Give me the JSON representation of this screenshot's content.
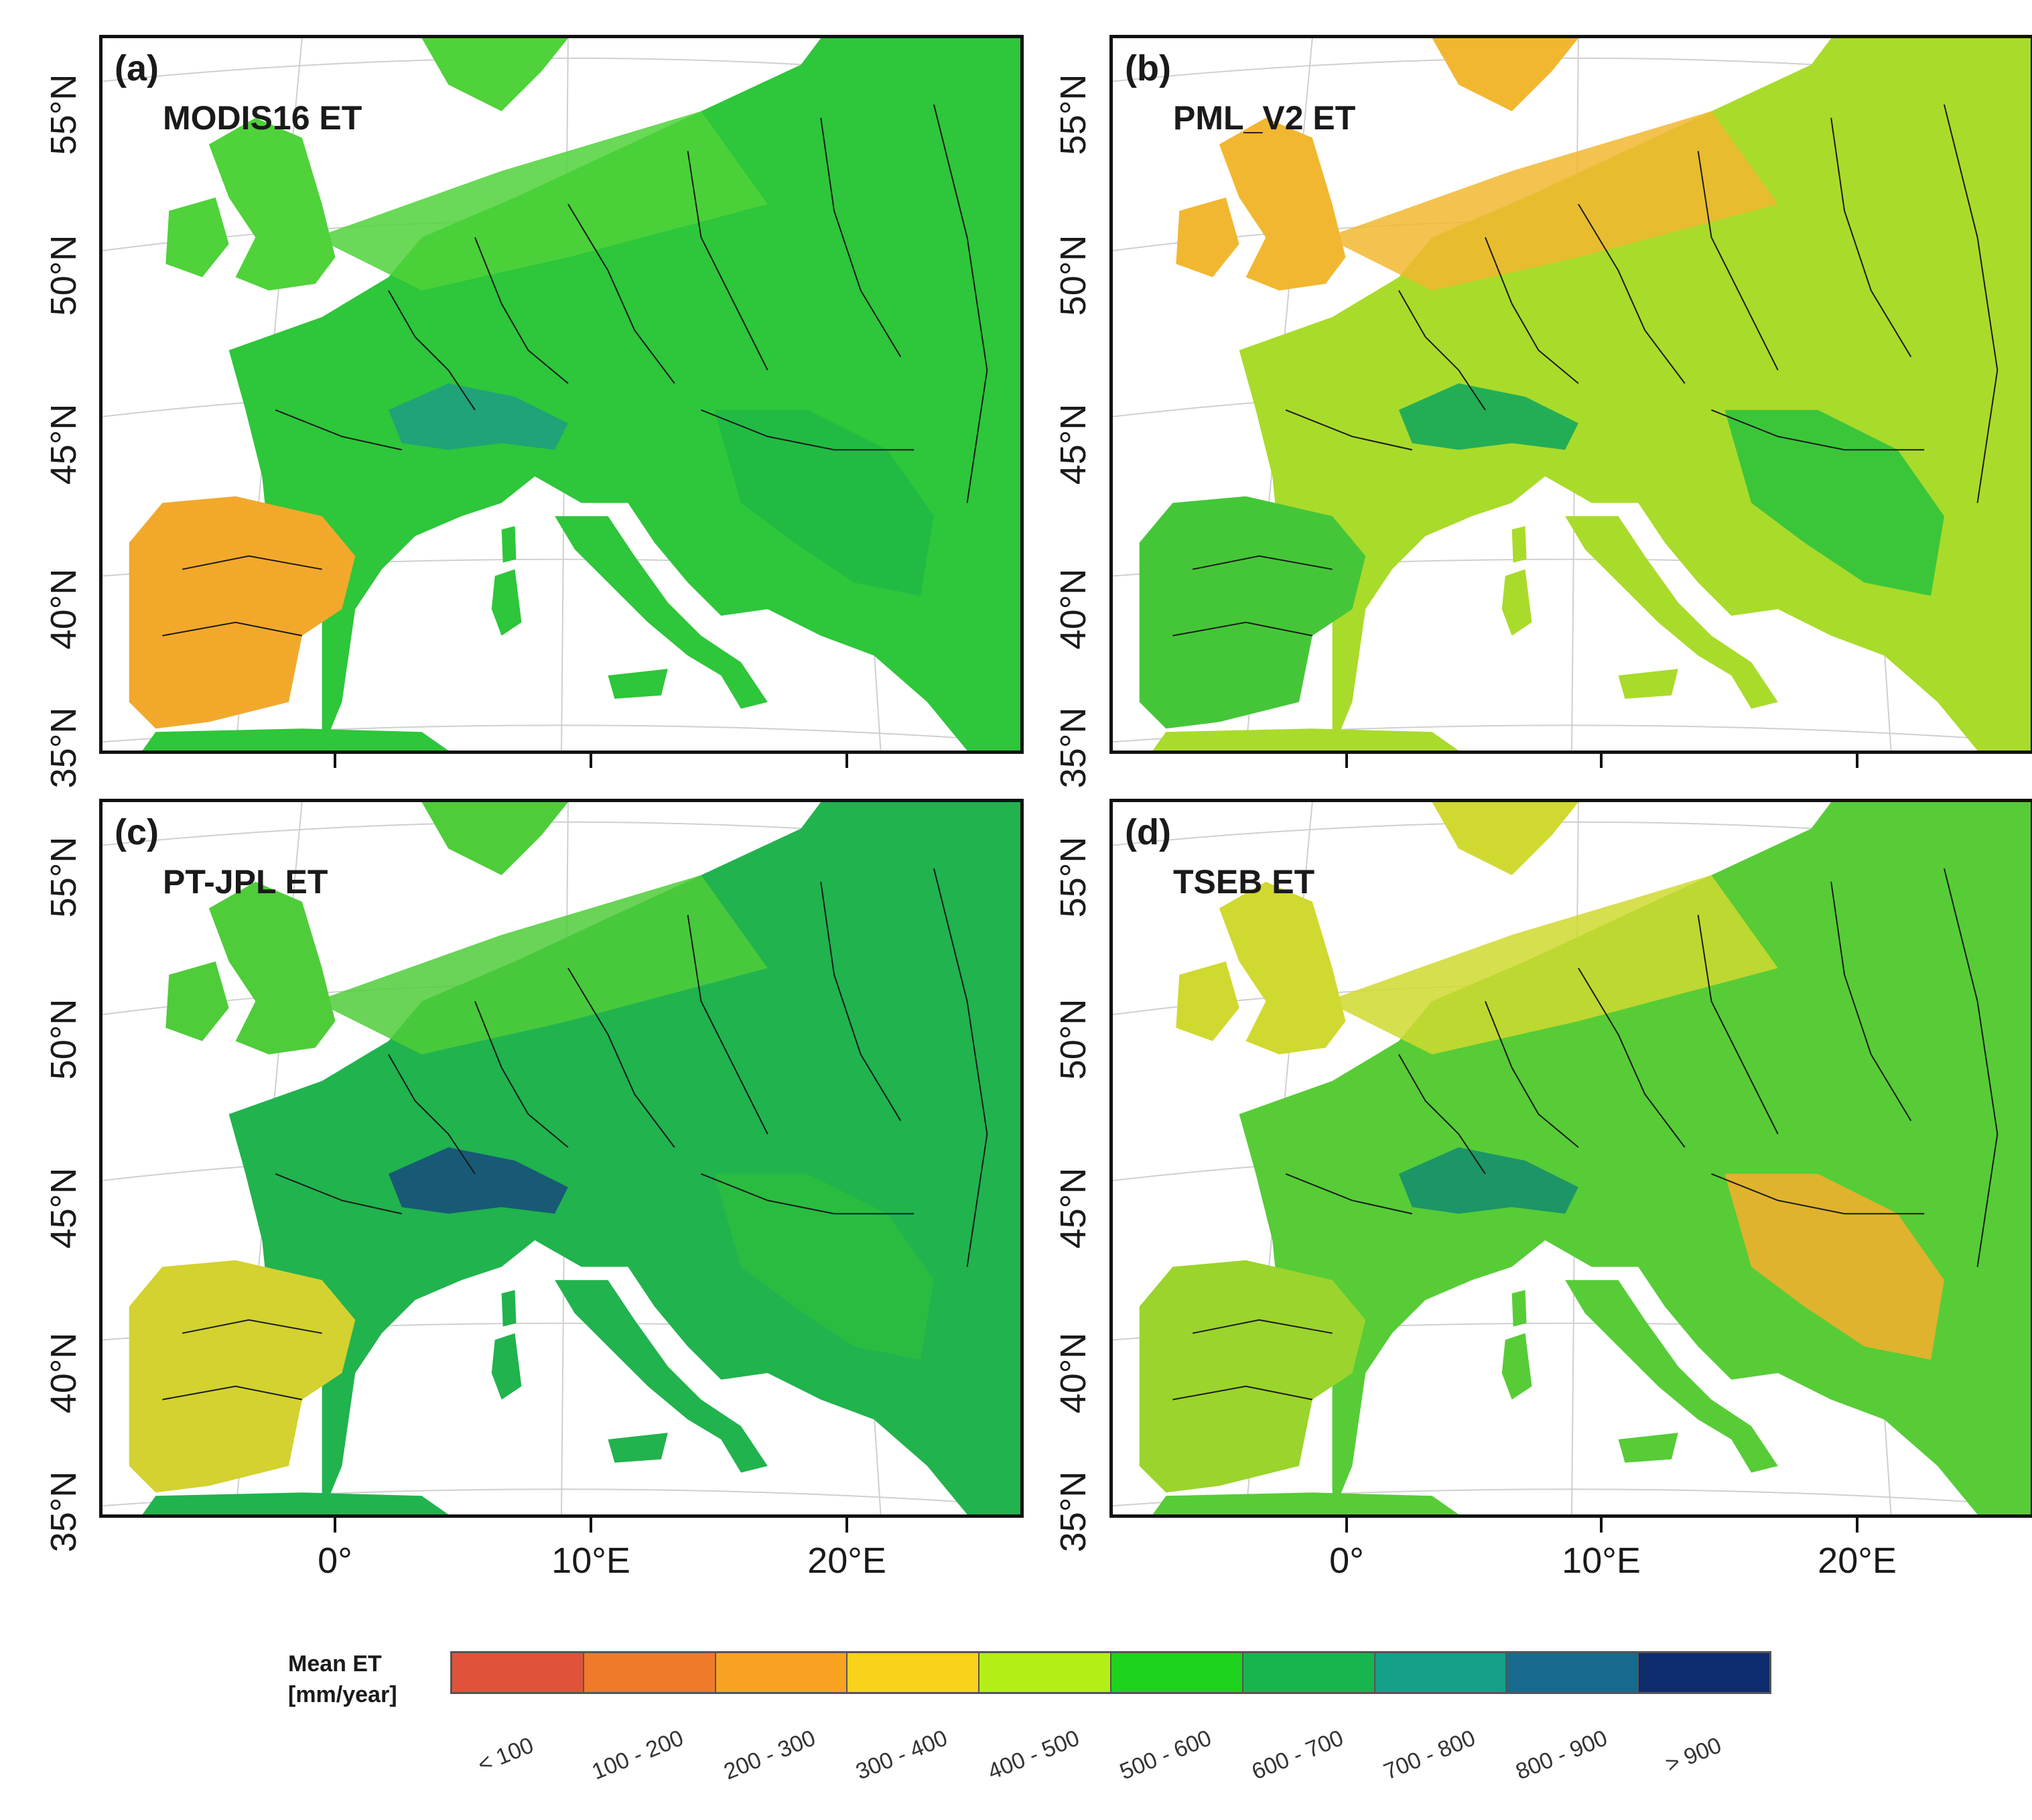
{
  "panels": [
    {
      "tag": "(a)",
      "title": "MODIS16 ET",
      "dominant": "#2ec63a",
      "iberia": "#f2a92b",
      "alps": "#1f9e7f",
      "north": "#4fd23a",
      "east": "#20b946"
    },
    {
      "tag": "(b)",
      "title": "PML_V2 ET",
      "dominant": "#a9db2b",
      "iberia": "#45c638",
      "alps": "#14a85a",
      "north": "#f2b730",
      "east": "#2fc33c"
    },
    {
      "tag": "(c)",
      "title": "PT-JPL ET",
      "dominant": "#21b34e",
      "iberia": "#d3d230",
      "alps": "#17507a",
      "north": "#4fcc3a",
      "east": "#2bbd3f"
    },
    {
      "tag": "(d)",
      "title": "TSEB ET",
      "dominant": "#57cc37",
      "iberia": "#9bd42c",
      "alps": "#168f6d",
      "north": "#cfd92f",
      "east": "#eeb02c"
    }
  ],
  "lat_labels": [
    "55°N",
    "50°N",
    "45°N",
    "40°N",
    "35°N"
  ],
  "lon_labels": [
    "0°",
    "10°E",
    "20°E"
  ],
  "legend": {
    "title_line1": "Mean ET",
    "title_line2": "[mm/year]",
    "classes": [
      {
        "label": "< 100",
        "color": "#e0533a"
      },
      {
        "label": "100 - 200",
        "color": "#ef7a2a"
      },
      {
        "label": "200 - 300",
        "color": "#f7a321"
      },
      {
        "label": "300 - 400",
        "color": "#f9d21b"
      },
      {
        "label": "400 - 500",
        "color": "#b3ef16"
      },
      {
        "label": "500 - 600",
        "color": "#1ed21e"
      },
      {
        "label": "600 - 700",
        "color": "#18b54f"
      },
      {
        "label": "700 - 800",
        "color": "#14a08a"
      },
      {
        "label": "800 - 900",
        "color": "#176a8e"
      },
      {
        "label": "> 900",
        "color": "#0e2c6e"
      }
    ]
  }
}
